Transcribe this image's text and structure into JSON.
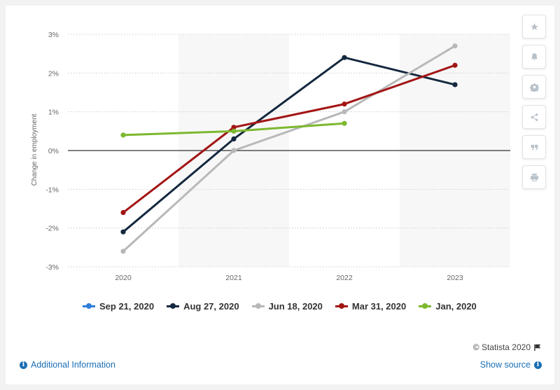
{
  "chart_data": {
    "type": "line",
    "title": "",
    "xlabel": "",
    "ylabel": "Change in employment",
    "categories": [
      "2020",
      "2021",
      "2022",
      "2023"
    ],
    "ylim": [
      -3,
      3
    ],
    "y_ticks": [
      3,
      2,
      1,
      0,
      -1,
      -2,
      -3
    ],
    "y_tick_labels": [
      "3%",
      "2%",
      "1%",
      "0%",
      "-1%",
      "-2%",
      "-3%"
    ],
    "grid": true,
    "legend_position": "bottom",
    "series": [
      {
        "name": "Sep 21, 2020",
        "color": "#2f7ed8",
        "values": [
          null,
          null,
          null,
          null
        ]
      },
      {
        "name": "Aug 27, 2020",
        "color": "#14283f",
        "values": [
          -2.1,
          0.3,
          2.4,
          1.7
        ]
      },
      {
        "name": "Jun 18, 2020",
        "color": "#b8b8b8",
        "values": [
          -2.6,
          0.0,
          1.0,
          2.7
        ]
      },
      {
        "name": "Mar 31, 2020",
        "color": "#a31515",
        "values": [
          -1.6,
          0.6,
          1.2,
          2.2
        ]
      },
      {
        "name": "Jan, 2020",
        "color": "#7cb82f",
        "values": [
          0.4,
          0.5,
          0.7,
          null
        ]
      }
    ]
  },
  "footer": {
    "credit": "© Statista 2020",
    "additional_info": "Additional Information",
    "show_source": "Show source"
  },
  "toolbar": {
    "icons": [
      "star-icon",
      "bell-icon",
      "gear-icon",
      "share-icon",
      "quote-icon",
      "print-icon"
    ]
  }
}
